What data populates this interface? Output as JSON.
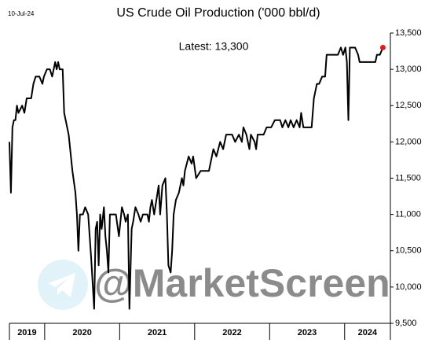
{
  "chart_data": {
    "type": "line",
    "date": "10-Jul-24",
    "title": "US Crude Oil Production ('000 bbl/d)",
    "annotation": "Latest:  13,300",
    "watermark": "@MarketScreen",
    "x": [
      2019.53,
      2019.55,
      2019.57,
      2019.59,
      2019.61,
      2019.63,
      2019.65,
      2019.7,
      2019.73,
      2019.76,
      2019.82,
      2019.85,
      2019.88,
      2019.93,
      2019.97,
      2019.99,
      2020.03,
      2020.07,
      2020.1,
      2020.14,
      2020.16,
      2020.18,
      2020.2,
      2020.24,
      2020.26,
      2020.32,
      2020.37,
      2020.41,
      2020.43,
      2020.45,
      2020.47,
      2020.51,
      2020.54,
      2020.58,
      2020.6,
      2020.62,
      2020.66,
      2020.68,
      2020.7,
      2020.72,
      2020.74,
      2020.76,
      2020.79,
      2020.81,
      2020.83,
      2020.85,
      2020.87,
      2020.95,
      2020.99,
      2021.03,
      2021.06,
      2021.08,
      2021.11,
      2021.13,
      2021.16,
      2021.18,
      2021.21,
      2021.25,
      2021.28,
      2021.31,
      2021.37,
      2021.39,
      2021.41,
      2021.43,
      2021.46,
      2021.49,
      2021.52,
      2021.54,
      2021.57,
      2021.61,
      2021.63,
      2021.65,
      2021.68,
      2021.7,
      2021.72,
      2021.75,
      2021.79,
      2021.83,
      2021.85,
      2021.87,
      2021.92,
      2021.96,
      2021.98,
      2022.02,
      2022.08,
      2022.19,
      2022.21,
      2022.25,
      2022.29,
      2022.34,
      2022.38,
      2022.42,
      2022.5,
      2022.54,
      2022.59,
      2022.63,
      2022.65,
      2022.69,
      2022.73,
      2022.75,
      2022.8,
      2022.82,
      2022.84,
      2022.92,
      2022.96,
      2023.02,
      2023.07,
      2023.14,
      2023.17,
      2023.21,
      2023.25,
      2023.28,
      2023.32,
      2023.36,
      2023.4,
      2023.42,
      2023.45,
      2023.56,
      2023.59,
      2023.63,
      2023.66,
      2023.7,
      2023.74,
      2023.76,
      2023.91,
      2023.95,
      2023.98,
      2024.01,
      2024.03,
      2024.05,
      2024.07,
      2024.14,
      2024.18,
      2024.2,
      2024.41,
      2024.43,
      2024.47,
      2024.51
    ],
    "series": [
      {
        "color": "#000000",
        "values": [
          12000,
          11300,
          12200,
          12300,
          12300,
          12500,
          12400,
          12500,
          12400,
          12600,
          12600,
          12800,
          12900,
          12900,
          12800,
          12900,
          13000,
          13000,
          12900,
          13100,
          13000,
          13100,
          13000,
          13000,
          12400,
          12100,
          11600,
          11300,
          11000,
          10500,
          11000,
          11000,
          11100,
          11000,
          10700,
          10400,
          9700,
          10800,
          10900,
          10300,
          11000,
          10800,
          11100,
          10700,
          10500,
          10200,
          11000,
          11000,
          10700,
          11100,
          11000,
          10900,
          11000,
          9700,
          10800,
          10900,
          11100,
          11000,
          10900,
          11000,
          11000,
          10900,
          11100,
          11200,
          11000,
          11200,
          11400,
          11000,
          11400,
          11500,
          11000,
          10300,
          10200,
          10500,
          11000,
          11200,
          11300,
          11500,
          11400,
          11600,
          11800,
          11700,
          11800,
          11500,
          11600,
          11600,
          11700,
          11900,
          11800,
          12000,
          11900,
          12100,
          12100,
          12000,
          12100,
          12000,
          12200,
          12100,
          11900,
          12100,
          12000,
          11900,
          12100,
          12100,
          12200,
          12200,
          12300,
          12300,
          12200,
          12300,
          12200,
          12300,
          12200,
          12300,
          12200,
          12400,
          12200,
          12200,
          12600,
          12800,
          12800,
          12900,
          12900,
          13200,
          13200,
          13300,
          13200,
          13300,
          13100,
          12300,
          13300,
          13300,
          13200,
          13100,
          13100,
          13200,
          13200,
          13300
        ]
      }
    ],
    "last_point_color": "#e31a1c",
    "xlim": [
      2019.53,
      2024.61
    ],
    "xticks": [
      2020,
      2021,
      2022,
      2023,
      2024
    ],
    "year_labels": [
      "2019",
      "2020",
      "2021",
      "2022",
      "2023",
      "2024"
    ],
    "ylim": [
      9500,
      13500
    ],
    "yticks": [
      {
        "value": 9500,
        "label": "9,500"
      },
      {
        "value": 10000,
        "label": "10,000"
      },
      {
        "value": 10500,
        "label": "10,500"
      },
      {
        "value": 11000,
        "label": "11,000"
      },
      {
        "value": 11500,
        "label": "11,500"
      },
      {
        "value": 12000,
        "label": "12,000"
      },
      {
        "value": 12500,
        "label": "12,500"
      },
      {
        "value": 13000,
        "label": "13,000"
      },
      {
        "value": 13500,
        "label": "13,500"
      }
    ],
    "grid": false
  }
}
